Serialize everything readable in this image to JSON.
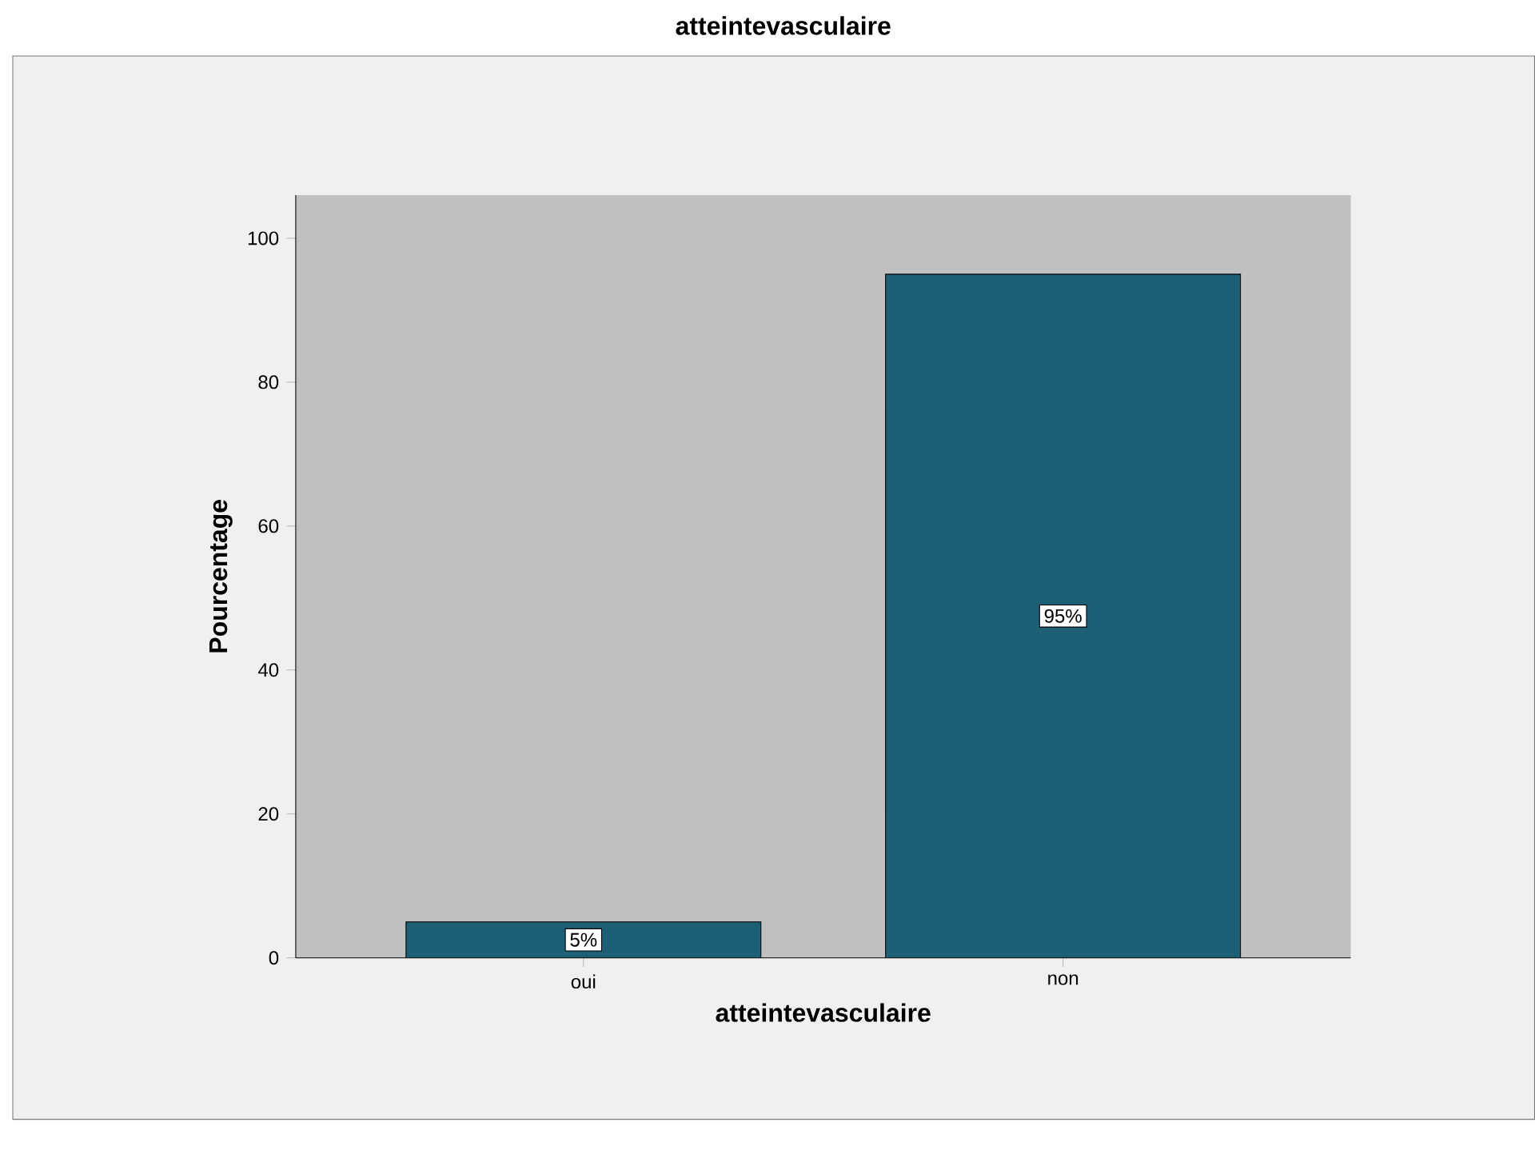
{
  "chart_data": {
    "type": "bar",
    "title": "atteintevasculaire",
    "xlabel": "atteintevasculaire",
    "ylabel": "Pourcentage",
    "categories": [
      "oui",
      "non"
    ],
    "values": [
      5,
      95
    ],
    "value_labels": [
      "5%",
      "95%"
    ],
    "color": "#1d5f74",
    "ylim": [
      0,
      106
    ],
    "yticks": [
      0,
      20,
      40,
      60,
      80,
      100
    ]
  }
}
